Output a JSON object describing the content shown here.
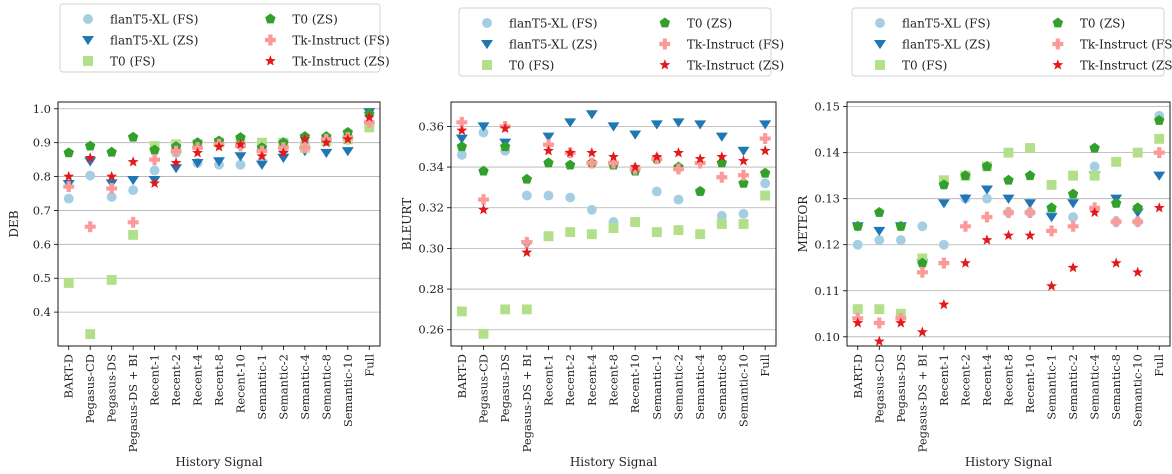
{
  "chart_data": [
    {
      "type": "scatter",
      "ylabel": "DEB",
      "xlabel": "History Signal",
      "ylim": [
        0.3,
        1.02
      ],
      "yticks": [
        0.4,
        0.5,
        0.6,
        0.7,
        0.8,
        0.9,
        1.0
      ],
      "ytick_labels": [
        "0.4",
        "0.5",
        "0.6",
        "0.7",
        "0.8",
        "0.9",
        "1.0"
      ],
      "grid": "horizontal",
      "legend": "top",
      "categories": [
        "BART-D",
        "Pegasus-CD",
        "Pegasus-DS",
        "Pegasus-DS + BI",
        "Recent-1",
        "Recent-2",
        "Recent-4",
        "Recent-8",
        "Recent-10",
        "Semantic-1",
        "Semantic-2",
        "Semantic-4",
        "Semantic-8",
        "Semantic-10",
        "Full"
      ],
      "series": [
        {
          "name": "flanT5-XL (FS)",
          "values": [
            0.735,
            0.803,
            0.74,
            0.76,
            0.818,
            0.87,
            0.84,
            0.835,
            0.835,
            0.845,
            0.875,
            0.9,
            0.905,
            0.908,
            0.948
          ]
        },
        {
          "name": "flanT5-XL (ZS)",
          "values": [
            0.778,
            0.845,
            0.78,
            0.79,
            0.79,
            0.825,
            0.84,
            0.845,
            0.86,
            0.835,
            0.855,
            0.875,
            0.87,
            0.875,
            0.99
          ]
        },
        {
          "name": "T0 (FS)",
          "values": [
            0.486,
            0.335,
            0.495,
            0.628,
            0.89,
            0.895,
            0.895,
            0.9,
            0.9,
            0.9,
            0.9,
            0.885,
            0.905,
            0.91,
            0.945
          ]
        },
        {
          "name": "T0 (ZS)",
          "values": [
            0.87,
            0.89,
            0.872,
            0.916,
            0.878,
            0.888,
            0.9,
            0.905,
            0.915,
            0.885,
            0.9,
            0.918,
            0.918,
            0.93,
            0.985
          ]
        },
        {
          "name": "Tk-Instruct (FS)",
          "values": [
            0.77,
            0.652,
            0.765,
            0.665,
            0.85,
            0.875,
            0.885,
            0.895,
            0.89,
            0.875,
            0.885,
            0.885,
            0.91,
            0.915,
            0.96
          ]
        },
        {
          "name": "Tk-Instruct (ZS)",
          "values": [
            0.8,
            0.855,
            0.8,
            0.843,
            0.78,
            0.84,
            0.87,
            0.888,
            0.895,
            0.86,
            0.87,
            0.91,
            0.9,
            0.91,
            0.975
          ]
        }
      ]
    },
    {
      "type": "scatter",
      "ylabel": "BLEURT",
      "xlabel": "History Signal",
      "ylim": [
        0.252,
        0.372
      ],
      "yticks": [
        0.26,
        0.28,
        0.3,
        0.32,
        0.34,
        0.36
      ],
      "ytick_labels": [
        "0.26",
        "0.28",
        "0.30",
        "0.32",
        "0.34",
        "0.36"
      ],
      "grid": "horizontal",
      "legend": "top",
      "categories": [
        "BART-D",
        "Pegasus-CD",
        "Pegasus-DS",
        "Pegasus-DS + BI",
        "Recent-1",
        "Recent-2",
        "Recent-4",
        "Recent-8",
        "Recent-10",
        "Semantic-1",
        "Semantic-2",
        "Semantic-4",
        "Semantic-8",
        "Semantic-10",
        "Full"
      ],
      "series": [
        {
          "name": "flanT5-XL (FS)",
          "values": [
            0.346,
            0.357,
            0.348,
            0.326,
            0.326,
            0.325,
            0.319,
            0.313,
            0.313,
            0.328,
            0.324,
            0.328,
            0.316,
            0.317,
            0.332
          ]
        },
        {
          "name": "flanT5-XL (ZS)",
          "values": [
            0.354,
            0.36,
            0.352,
            0.302,
            0.355,
            0.362,
            0.366,
            0.36,
            0.356,
            0.361,
            0.362,
            0.361,
            0.355,
            0.348,
            0.361
          ]
        },
        {
          "name": "T0 (FS)",
          "values": [
            0.269,
            0.258,
            0.27,
            0.27,
            0.306,
            0.308,
            0.307,
            0.31,
            0.313,
            0.308,
            0.309,
            0.307,
            0.312,
            0.312,
            0.326
          ]
        },
        {
          "name": "T0 (ZS)",
          "values": [
            0.35,
            0.338,
            0.35,
            0.334,
            0.342,
            0.341,
            0.342,
            0.341,
            0.338,
            0.344,
            0.34,
            0.328,
            0.342,
            0.332,
            0.337
          ]
        },
        {
          "name": "Tk-Instruct (FS)",
          "values": [
            0.362,
            0.324,
            0.36,
            0.303,
            0.351,
            0.347,
            0.342,
            0.342,
            0.339,
            0.344,
            0.339,
            0.342,
            0.335,
            0.336,
            0.354
          ]
        },
        {
          "name": "Tk-Instruct (ZS)",
          "values": [
            0.358,
            0.319,
            0.359,
            0.298,
            0.348,
            0.347,
            0.347,
            0.345,
            0.34,
            0.345,
            0.347,
            0.344,
            0.345,
            0.343,
            0.348
          ]
        }
      ]
    },
    {
      "type": "scatter",
      "ylabel": "METEOR",
      "xlabel": "History Signal",
      "ylim": [
        0.098,
        0.151
      ],
      "yticks": [
        0.1,
        0.11,
        0.12,
        0.13,
        0.14,
        0.15
      ],
      "ytick_labels": [
        "0.10",
        "0.11",
        "0.12",
        "0.13",
        "0.14",
        "0.15"
      ],
      "grid": "horizontal",
      "legend": "top",
      "categories": [
        "BART-D",
        "Pegasus-CD",
        "Pegasus-DS",
        "Pegasus-DS + BI",
        "Recent-1",
        "Recent-2",
        "Recent-4",
        "Recent-8",
        "Recent-10",
        "Semantic-1",
        "Semantic-2",
        "Semantic-4",
        "Semantic-8",
        "Semantic-10",
        "Full"
      ],
      "series": [
        {
          "name": "flanT5-XL (FS)",
          "values": [
            0.12,
            0.121,
            0.121,
            0.124,
            0.12,
            0.13,
            0.13,
            0.127,
            0.127,
            0.127,
            0.126,
            0.137,
            0.125,
            0.125,
            0.148
          ]
        },
        {
          "name": "flanT5-XL (ZS)",
          "values": [
            0.124,
            0.123,
            0.124,
            0.116,
            0.129,
            0.13,
            0.132,
            0.13,
            0.129,
            0.126,
            0.129,
            0.135,
            0.13,
            0.127,
            0.135
          ]
        },
        {
          "name": "T0 (FS)",
          "values": [
            0.106,
            0.106,
            0.105,
            0.117,
            0.134,
            0.135,
            0.137,
            0.14,
            0.141,
            0.133,
            0.135,
            0.135,
            0.138,
            0.14,
            0.143
          ]
        },
        {
          "name": "T0 (ZS)",
          "values": [
            0.124,
            0.127,
            0.124,
            0.116,
            0.133,
            0.135,
            0.137,
            0.134,
            0.135,
            0.128,
            0.131,
            0.141,
            0.129,
            0.128,
            0.147
          ]
        },
        {
          "name": "Tk-Instruct (FS)",
          "values": [
            0.104,
            0.103,
            0.104,
            0.114,
            0.116,
            0.124,
            0.126,
            0.127,
            0.127,
            0.123,
            0.124,
            0.128,
            0.125,
            0.125,
            0.14
          ]
        },
        {
          "name": "Tk-Instruct (ZS)",
          "values": [
            0.103,
            0.099,
            0.103,
            0.101,
            0.107,
            0.116,
            0.121,
            0.122,
            0.122,
            0.111,
            0.115,
            0.127,
            0.116,
            0.114,
            0.128
          ]
        }
      ]
    }
  ],
  "series_styles": [
    {
      "marker": "circle",
      "color": "#a6cee3"
    },
    {
      "marker": "triangle-down",
      "color": "#1f78b4"
    },
    {
      "marker": "square",
      "color": "#b2df8a"
    },
    {
      "marker": "pentagon",
      "color": "#33a02c"
    },
    {
      "marker": "plus",
      "color": "#fb9a99"
    },
    {
      "marker": "star",
      "color": "#e31a1c"
    }
  ],
  "legend_order": [
    0,
    3,
    1,
    4,
    2,
    5
  ]
}
